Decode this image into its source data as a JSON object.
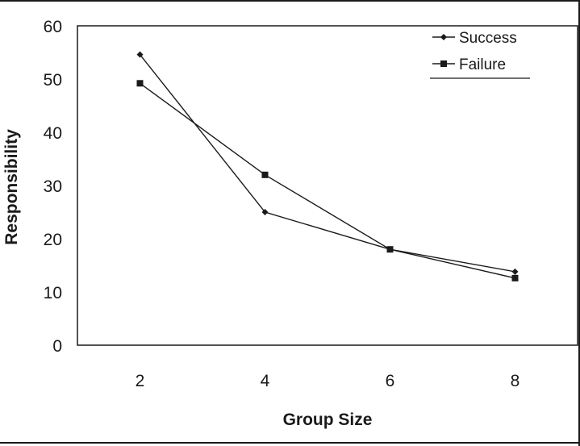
{
  "chart_data": {
    "type": "line",
    "x": [
      2,
      4,
      6,
      8
    ],
    "xticks": [
      "2",
      "4",
      "6",
      "8"
    ],
    "yticks": [
      "0",
      "10",
      "20",
      "30",
      "40",
      "50",
      "60"
    ],
    "xlim": [
      1,
      9
    ],
    "ylim": [
      0,
      60
    ],
    "xlabel": "Group Size",
    "ylabel": "Responsibility",
    "grid": false,
    "legend_position": "top-right",
    "series": [
      {
        "name": "Success",
        "marker": "diamond",
        "color": "#1a1a1a",
        "values": [
          54.6,
          25.0,
          18.0,
          13.8
        ]
      },
      {
        "name": "Failure",
        "marker": "square",
        "color": "#1a1a1a",
        "values": [
          49.2,
          32.0,
          18.0,
          12.6
        ]
      }
    ]
  }
}
